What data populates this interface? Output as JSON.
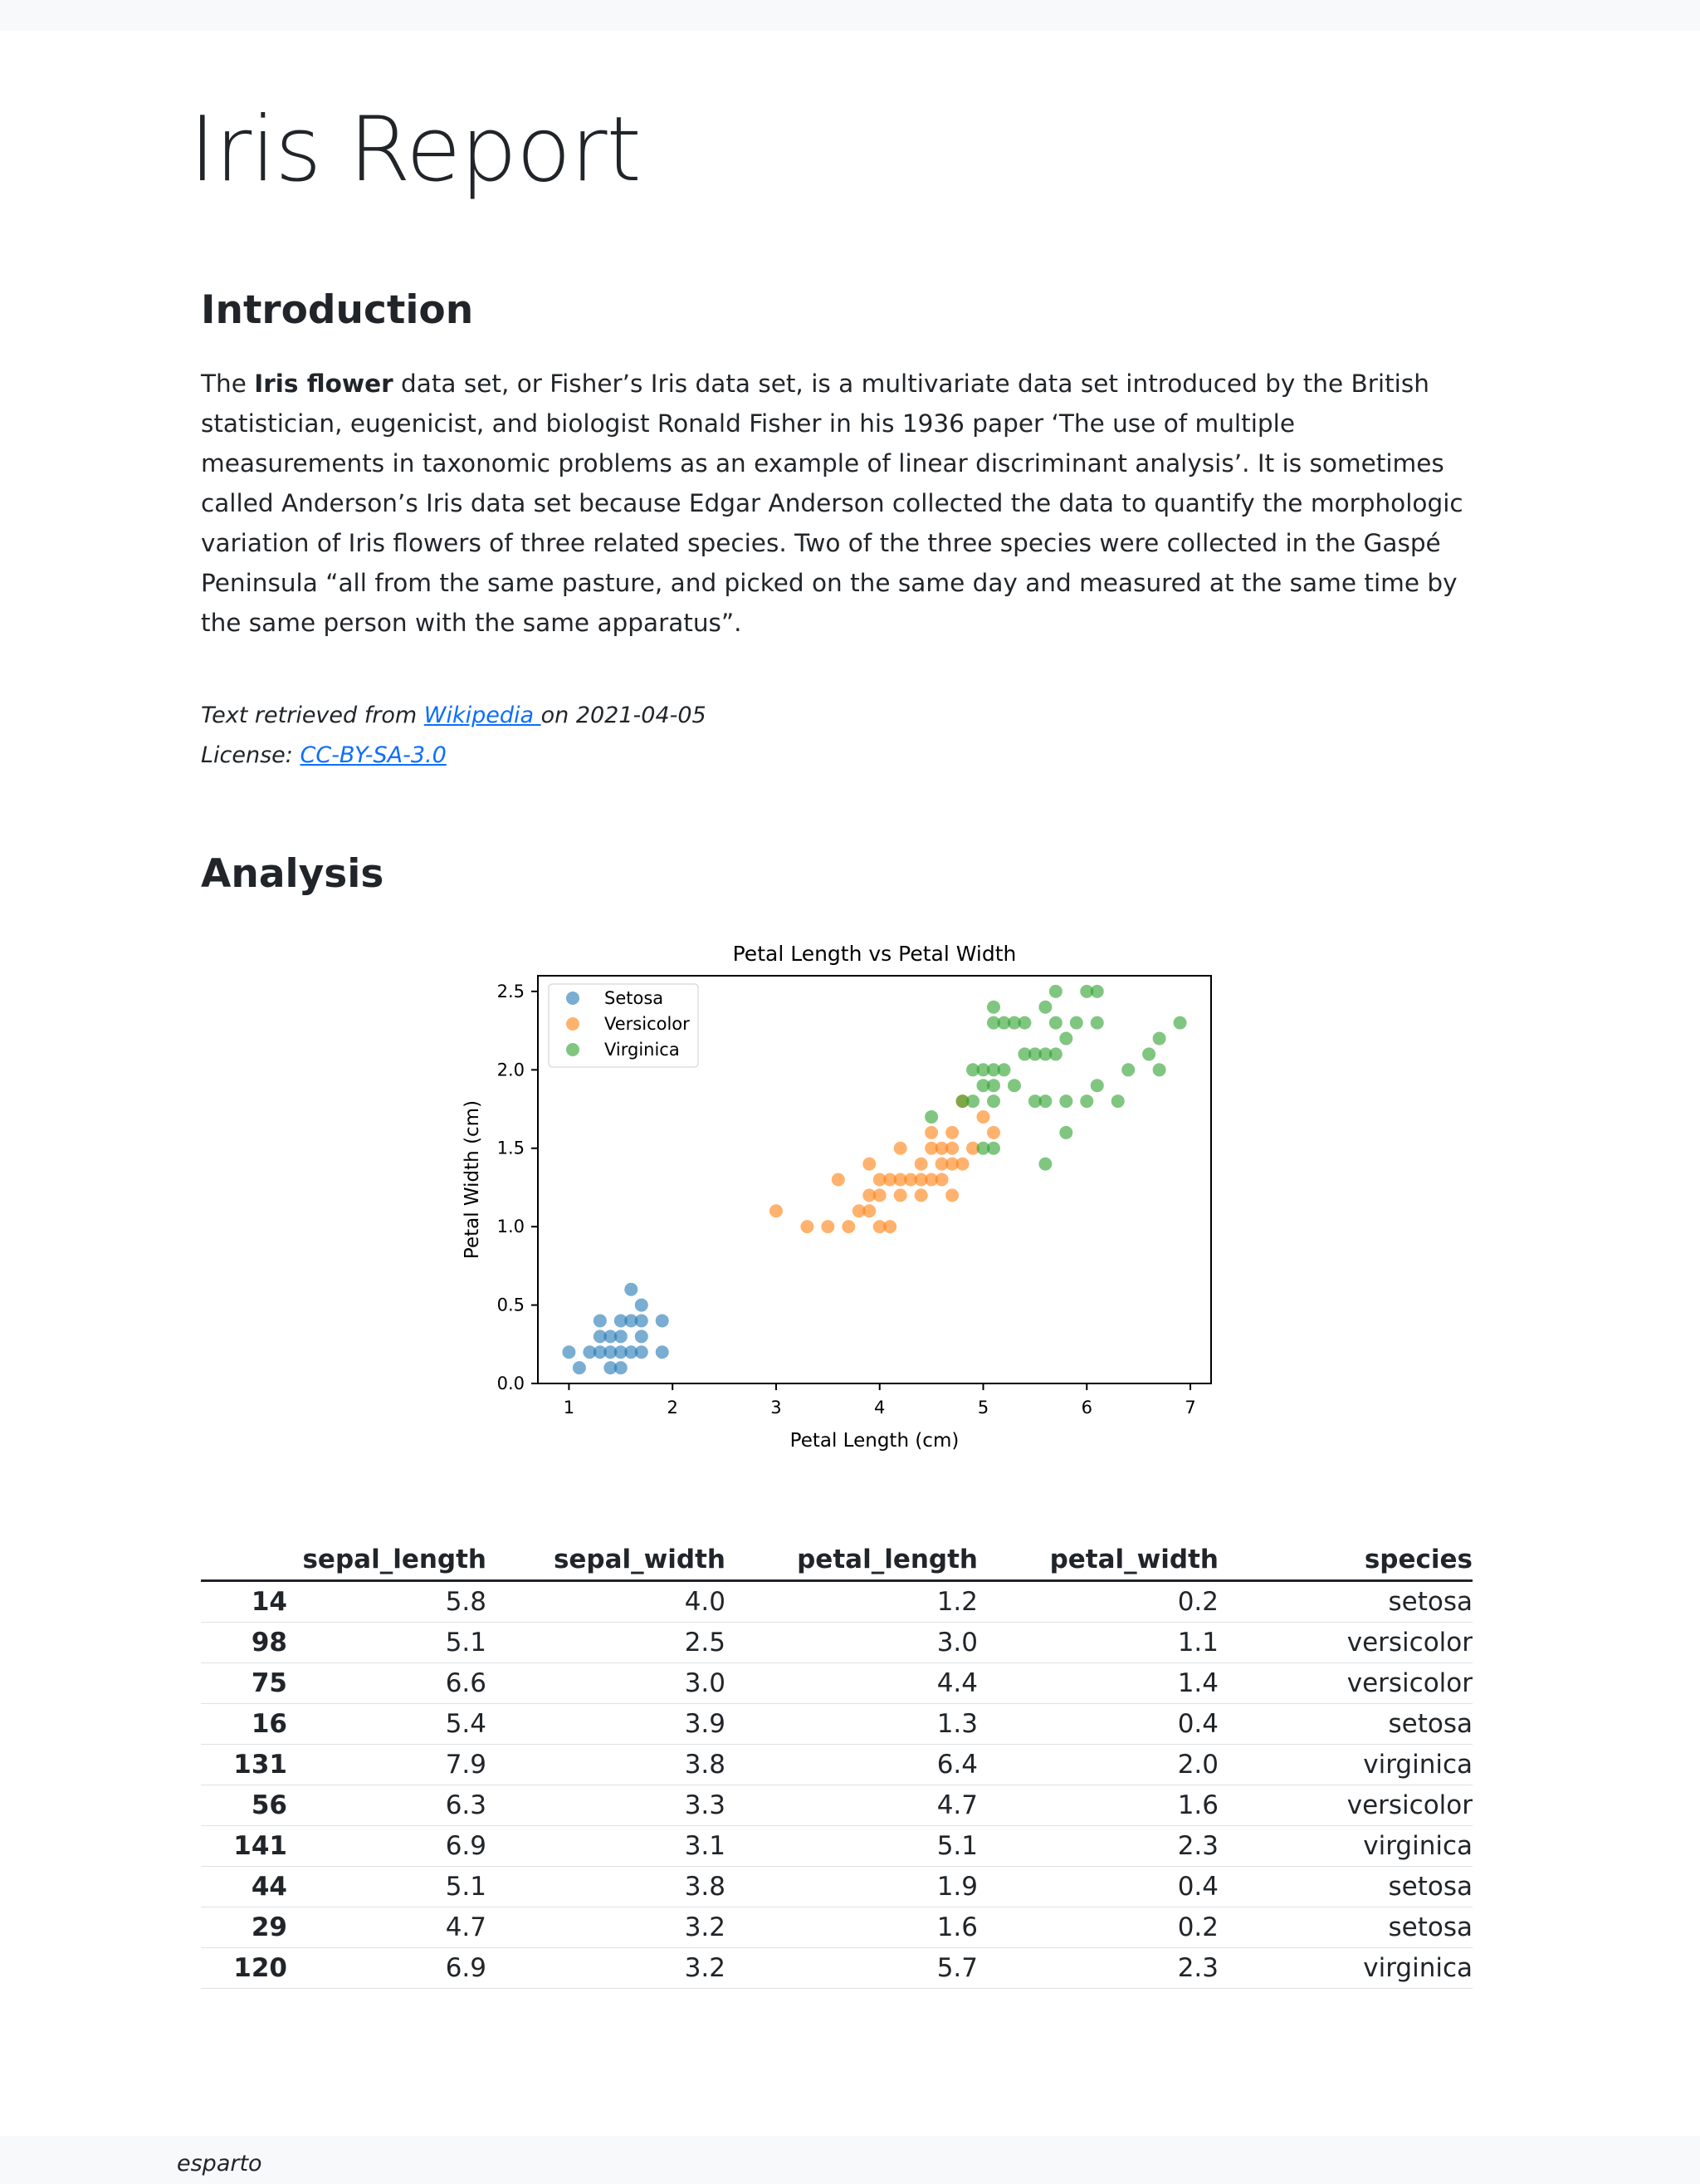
{
  "page": {
    "title": "Iris Report",
    "footer": "esparto"
  },
  "intro": {
    "heading": "Introduction",
    "text_before": "The ",
    "bold": "Iris flower",
    "text_after": " data set, or Fisher’s Iris data set, is a multivariate data set introduced by the British statistician, eugenicist, and biologist Ronald Fisher in his 1936 paper ‘The use of multiple measurements in taxonomic problems as an example of linear discriminant analysis’. It is sometimes called Anderson’s Iris data set because Edgar Anderson collected the data to quantify the morphologic variation of Iris flowers of three related species. Two of the three species were collected in the Gaspé Peninsula “all from the same pasture, and picked on the same day and measured at the same time by the same person with the same apparatus”.",
    "retrieved_prefix": "Text retrieved from ",
    "retrieved_link": "Wikipedia ",
    "retrieved_suffix": "on 2021-04-05",
    "license_prefix": "License: ",
    "license_link": "CC-BY-SA-3.0 "
  },
  "analysis": {
    "heading": "Analysis"
  },
  "chart_data": {
    "type": "scatter",
    "title": "Petal Length vs Petal Width",
    "xlabel": "Petal Length (cm)",
    "ylabel": "Petal Width (cm)",
    "xlim": [
      0.7,
      7.2
    ],
    "ylim": [
      0,
      2.6
    ],
    "xticks": [
      1,
      2,
      3,
      4,
      5,
      6,
      7
    ],
    "yticks": [
      0.0,
      0.5,
      1.0,
      1.5,
      2.0,
      2.5
    ],
    "grid": false,
    "legend": "upper-left",
    "series": [
      {
        "name": "Setosa",
        "color": "#1f77b4",
        "points": [
          [
            1.0,
            0.2
          ],
          [
            1.1,
            0.1
          ],
          [
            1.2,
            0.2
          ],
          [
            1.3,
            0.2
          ],
          [
            1.3,
            0.3
          ],
          [
            1.3,
            0.4
          ],
          [
            1.4,
            0.1
          ],
          [
            1.4,
            0.2
          ],
          [
            1.4,
            0.3
          ],
          [
            1.5,
            0.1
          ],
          [
            1.5,
            0.2
          ],
          [
            1.5,
            0.3
          ],
          [
            1.5,
            0.4
          ],
          [
            1.6,
            0.2
          ],
          [
            1.6,
            0.4
          ],
          [
            1.6,
            0.6
          ],
          [
            1.7,
            0.2
          ],
          [
            1.7,
            0.3
          ],
          [
            1.7,
            0.4
          ],
          [
            1.7,
            0.5
          ],
          [
            1.9,
            0.2
          ],
          [
            1.9,
            0.4
          ]
        ]
      },
      {
        "name": "Versicolor",
        "color": "#ff7f0e",
        "points": [
          [
            3.0,
            1.1
          ],
          [
            3.3,
            1.0
          ],
          [
            3.5,
            1.0
          ],
          [
            3.6,
            1.3
          ],
          [
            3.7,
            1.0
          ],
          [
            3.8,
            1.1
          ],
          [
            3.9,
            1.1
          ],
          [
            3.9,
            1.2
          ],
          [
            3.9,
            1.4
          ],
          [
            4.0,
            1.0
          ],
          [
            4.0,
            1.2
          ],
          [
            4.0,
            1.3
          ],
          [
            4.1,
            1.0
          ],
          [
            4.1,
            1.3
          ],
          [
            4.2,
            1.2
          ],
          [
            4.2,
            1.3
          ],
          [
            4.2,
            1.5
          ],
          [
            4.3,
            1.3
          ],
          [
            4.4,
            1.2
          ],
          [
            4.4,
            1.3
          ],
          [
            4.4,
            1.4
          ],
          [
            4.5,
            1.3
          ],
          [
            4.5,
            1.5
          ],
          [
            4.5,
            1.6
          ],
          [
            4.6,
            1.3
          ],
          [
            4.6,
            1.4
          ],
          [
            4.6,
            1.5
          ],
          [
            4.7,
            1.2
          ],
          [
            4.7,
            1.4
          ],
          [
            4.7,
            1.5
          ],
          [
            4.7,
            1.6
          ],
          [
            4.8,
            1.4
          ],
          [
            4.8,
            1.8
          ],
          [
            4.9,
            1.5
          ],
          [
            5.0,
            1.7
          ],
          [
            5.1,
            1.6
          ]
        ]
      },
      {
        "name": "Virginica",
        "color": "#2ca02c",
        "points": [
          [
            4.5,
            1.7
          ],
          [
            4.8,
            1.8
          ],
          [
            4.9,
            1.8
          ],
          [
            4.9,
            2.0
          ],
          [
            5.0,
            1.5
          ],
          [
            5.0,
            1.9
          ],
          [
            5.0,
            2.0
          ],
          [
            5.1,
            1.5
          ],
          [
            5.1,
            1.8
          ],
          [
            5.1,
            1.9
          ],
          [
            5.1,
            2.0
          ],
          [
            5.1,
            2.3
          ],
          [
            5.1,
            2.4
          ],
          [
            5.2,
            2.0
          ],
          [
            5.2,
            2.3
          ],
          [
            5.3,
            1.9
          ],
          [
            5.3,
            2.3
          ],
          [
            5.4,
            2.1
          ],
          [
            5.4,
            2.3
          ],
          [
            5.5,
            1.8
          ],
          [
            5.5,
            2.1
          ],
          [
            5.6,
            1.4
          ],
          [
            5.6,
            1.8
          ],
          [
            5.6,
            2.1
          ],
          [
            5.6,
            2.4
          ],
          [
            5.7,
            2.1
          ],
          [
            5.7,
            2.3
          ],
          [
            5.7,
            2.5
          ],
          [
            5.8,
            1.6
          ],
          [
            5.8,
            1.8
          ],
          [
            5.8,
            2.2
          ],
          [
            5.9,
            2.3
          ],
          [
            6.0,
            1.8
          ],
          [
            6.0,
            2.5
          ],
          [
            6.1,
            1.9
          ],
          [
            6.1,
            2.3
          ],
          [
            6.1,
            2.5
          ],
          [
            6.3,
            1.8
          ],
          [
            6.4,
            2.0
          ],
          [
            6.6,
            2.1
          ],
          [
            6.7,
            2.0
          ],
          [
            6.7,
            2.2
          ],
          [
            6.9,
            2.3
          ]
        ]
      }
    ]
  },
  "table": {
    "columns": [
      "",
      "sepal_length",
      "sepal_width",
      "petal_length",
      "petal_width",
      "species"
    ],
    "rows": [
      [
        "14",
        "5.8",
        "4.0",
        "1.2",
        "0.2",
        "setosa"
      ],
      [
        "98",
        "5.1",
        "2.5",
        "3.0",
        "1.1",
        "versicolor"
      ],
      [
        "75",
        "6.6",
        "3.0",
        "4.4",
        "1.4",
        "versicolor"
      ],
      [
        "16",
        "5.4",
        "3.9",
        "1.3",
        "0.4",
        "setosa"
      ],
      [
        "131",
        "7.9",
        "3.8",
        "6.4",
        "2.0",
        "virginica"
      ],
      [
        "56",
        "6.3",
        "3.3",
        "4.7",
        "1.6",
        "versicolor"
      ],
      [
        "141",
        "6.9",
        "3.1",
        "5.1",
        "2.3",
        "virginica"
      ],
      [
        "44",
        "5.1",
        "3.8",
        "1.9",
        "0.4",
        "setosa"
      ],
      [
        "29",
        "4.7",
        "3.2",
        "1.6",
        "0.2",
        "setosa"
      ],
      [
        "120",
        "6.9",
        "3.2",
        "5.7",
        "2.3",
        "virginica"
      ]
    ]
  }
}
